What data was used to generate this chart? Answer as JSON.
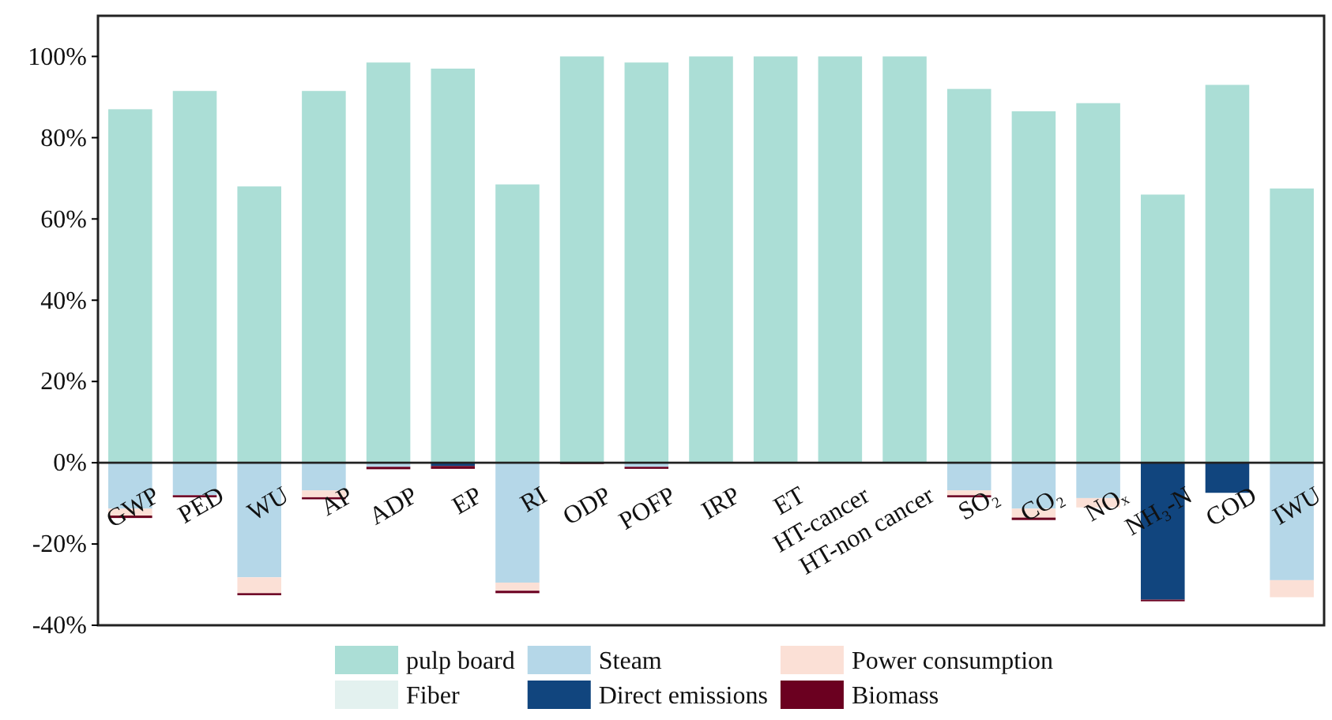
{
  "chart_data": {
    "type": "bar",
    "stacked": true,
    "categories": [
      "GWP",
      "PED",
      "WU",
      "AP",
      "ADP",
      "EP",
      "RI",
      "ODP",
      "POFP",
      "IRP",
      "ET",
      "HT-cancer",
      "HT-non cancer",
      "SO₂",
      "CO₂",
      "NOₓ",
      "NH₃-N",
      "COD",
      "IWU"
    ],
    "series": [
      {
        "name": "pulp board",
        "color": "#abded6",
        "values": [
          87,
          91.5,
          68,
          91.5,
          98.5,
          97,
          68.5,
          100,
          98.5,
          100,
          100,
          100,
          100,
          92,
          86.5,
          88.5,
          66,
          93,
          67.5
        ]
      },
      {
        "name": "Fiber",
        "color": "#e3f1ef",
        "values": [
          0,
          0,
          0,
          0,
          0,
          0,
          0,
          0,
          0,
          0,
          0,
          0,
          0,
          0,
          0,
          0,
          0,
          0,
          0
        ]
      },
      {
        "name": "Steam",
        "color": "#b5d7e8",
        "values": [
          -11.3,
          -8,
          -28.2,
          -6.8,
          -1,
          null,
          -29.5,
          0,
          -1,
          0,
          0,
          0,
          0,
          -6.8,
          -11.3,
          -8.7,
          0,
          0,
          -28.9
        ]
      },
      {
        "name": "Direct emissions",
        "color": "#11457e",
        "values": [
          0,
          0,
          0,
          0,
          0,
          -0.8,
          0,
          0,
          0,
          0,
          0,
          0,
          0,
          0,
          0,
          0,
          -33.7,
          -7.4,
          0
        ]
      },
      {
        "name": "Power consumption",
        "color": "#fbe0d6",
        "values": [
          -1.7,
          null,
          -3.9,
          -1.7,
          0,
          0,
          -2,
          0,
          0,
          0,
          0,
          0,
          0,
          -1.2,
          -2.2,
          -2.3,
          0,
          null,
          -4.2
        ]
      },
      {
        "name": "Biomass",
        "color": "#6b0020",
        "values": [
          -0.6,
          -0.5,
          -0.5,
          -0.5,
          -0.6,
          -0.7,
          -0.6,
          -0.3,
          -0.5,
          0,
          0,
          0,
          0,
          -0.5,
          -0.6,
          null,
          -0.4,
          0,
          0
        ]
      }
    ],
    "ylim": [
      -40,
      110
    ],
    "yticks": [
      {
        "value": -40,
        "label": "-40%"
      },
      {
        "value": -20,
        "label": "-20%"
      },
      {
        "value": 0,
        "label": "0%"
      },
      {
        "value": 20,
        "label": "20%"
      },
      {
        "value": 40,
        "label": "40%"
      },
      {
        "value": 60,
        "label": "60%"
      },
      {
        "value": 80,
        "label": "80%"
      },
      {
        "value": 100,
        "label": "100%"
      }
    ],
    "legend": "bottom"
  }
}
